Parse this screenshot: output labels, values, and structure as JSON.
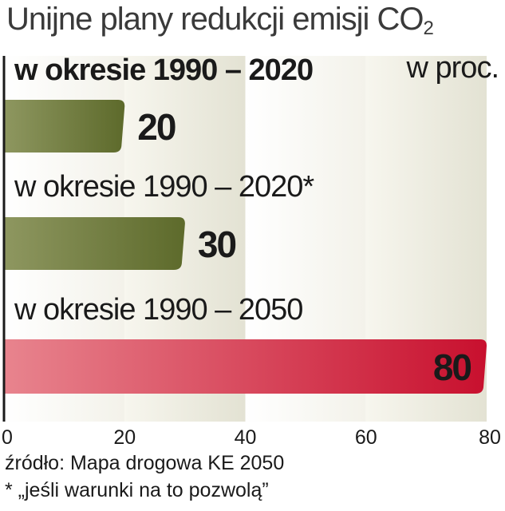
{
  "title": {
    "text": "Unijne plany redukcji emisji CO",
    "subscript": "2"
  },
  "unit_label": "w proc.",
  "footer": {
    "source": "źródło: Mapa drogowa KE 2050",
    "note": "* „jeśli warunki na to pozwolą”"
  },
  "colors": {
    "olive_dark": "#5d6a2b",
    "olive_light": "#8e9760",
    "red_dark": "#c8102e",
    "red_light": "#e8848e",
    "band_light": "#f3f2ea",
    "band_dark": "#e3e2d3",
    "axis": "#1a1a1a"
  },
  "chart_data": {
    "type": "bar",
    "orientation": "horizontal",
    "categories": [
      "w okresie 1990 – 2020",
      "w okresie 1990 – 2020*",
      "w okresie 1990 – 2050"
    ],
    "values": [
      20,
      30,
      80
    ],
    "value_labels": [
      "20",
      "30",
      "80"
    ],
    "bar_colors": [
      "olive",
      "olive",
      "red"
    ],
    "xlim": [
      0,
      80
    ],
    "xticks": [
      0,
      20,
      40,
      60,
      80
    ],
    "xtick_labels": [
      "0",
      "20",
      "40",
      "60",
      "80"
    ],
    "grid": "alternating vertical bands",
    "xlabel": "",
    "ylabel": "w proc."
  }
}
